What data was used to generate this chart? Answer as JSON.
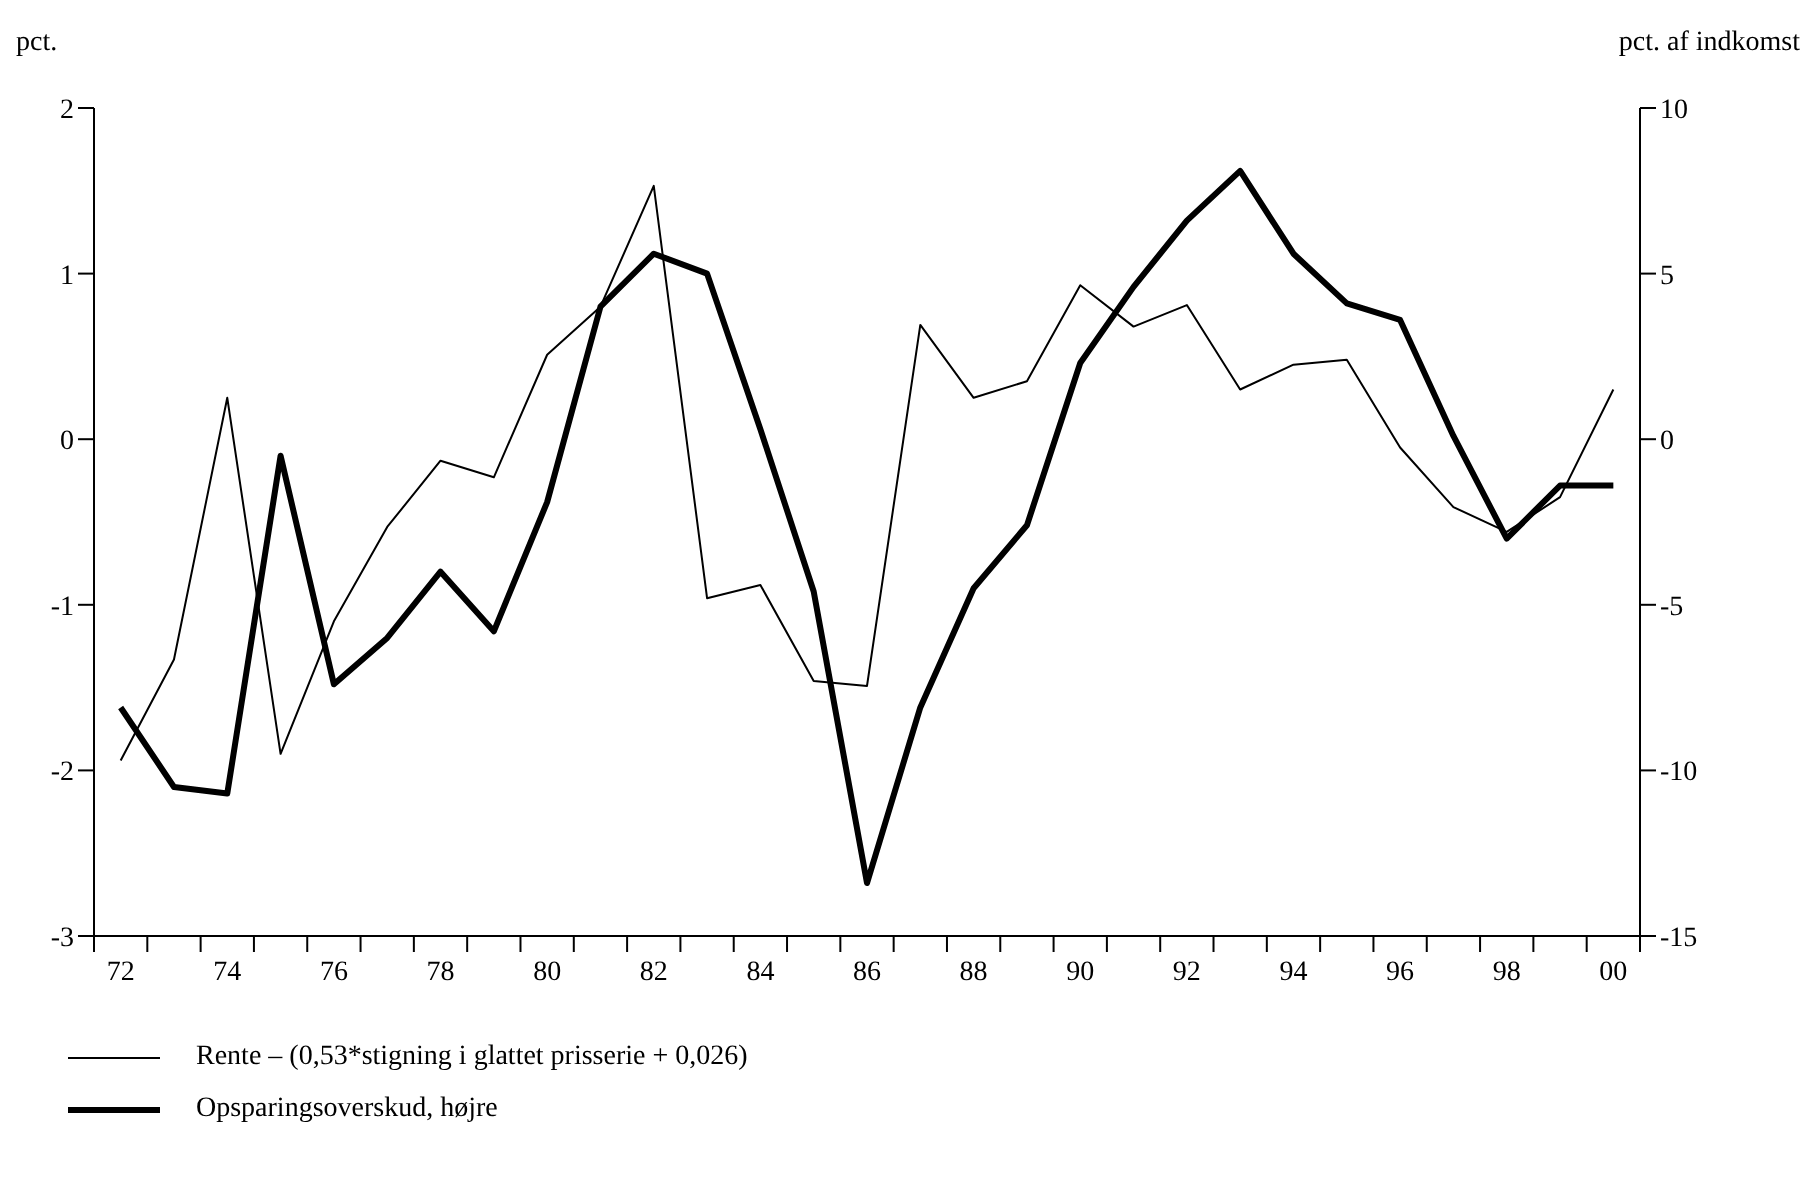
{
  "chart_data": {
    "type": "line",
    "ylabel": "pct.",
    "y2label": "pct. af indkomst",
    "categories": [
      "72",
      null,
      "74",
      null,
      "76",
      null,
      "78",
      null,
      "80",
      null,
      "82",
      null,
      "84",
      null,
      "86",
      null,
      "88",
      null,
      "90",
      null,
      "92",
      null,
      "94",
      null,
      "96",
      null,
      "98",
      null,
      "00"
    ],
    "series": [
      {
        "name": "Rente – (0,53*stigning i glattet prisserie + 0,026)",
        "color": "#000000",
        "values": [
          -1.94,
          -1.33,
          0.25,
          -1.9,
          -1.1,
          -0.53,
          -0.13,
          -0.23,
          0.51,
          0.8,
          1.53,
          -0.96,
          -0.88,
          -1.46,
          -1.49,
          0.69,
          0.25,
          0.35,
          0.93,
          0.68,
          0.81,
          0.3,
          0.45,
          0.48,
          -0.05,
          -0.41,
          -0.56,
          -0.35,
          0.3
        ]
      },
      {
        "name": "Opsparingsoverskud, højre",
        "color": "#000000",
        "axis": "y2",
        "values": [
          -8.1,
          -10.5,
          -10.7,
          -0.5,
          -7.4,
          -6.0,
          -4.0,
          -5.8,
          -1.9,
          4.0,
          5.6,
          5.0,
          0.3,
          -4.6,
          -13.4,
          -8.1,
          -4.5,
          -2.6,
          2.3,
          4.6,
          6.6,
          8.1,
          5.6,
          4.1,
          3.6,
          0.1,
          -3.0,
          -1.4,
          -1.4
        ]
      }
    ],
    "ylim": [
      -3,
      2
    ],
    "yticks": [
      -3,
      -2,
      -1,
      0,
      1,
      2
    ],
    "y2lim": [
      -15,
      10
    ],
    "y2ticks": [
      -15,
      -10,
      -5,
      0,
      5,
      10
    ],
    "grid": false,
    "legend": "bottom",
    "marker": "none",
    "line_style": "solid"
  }
}
